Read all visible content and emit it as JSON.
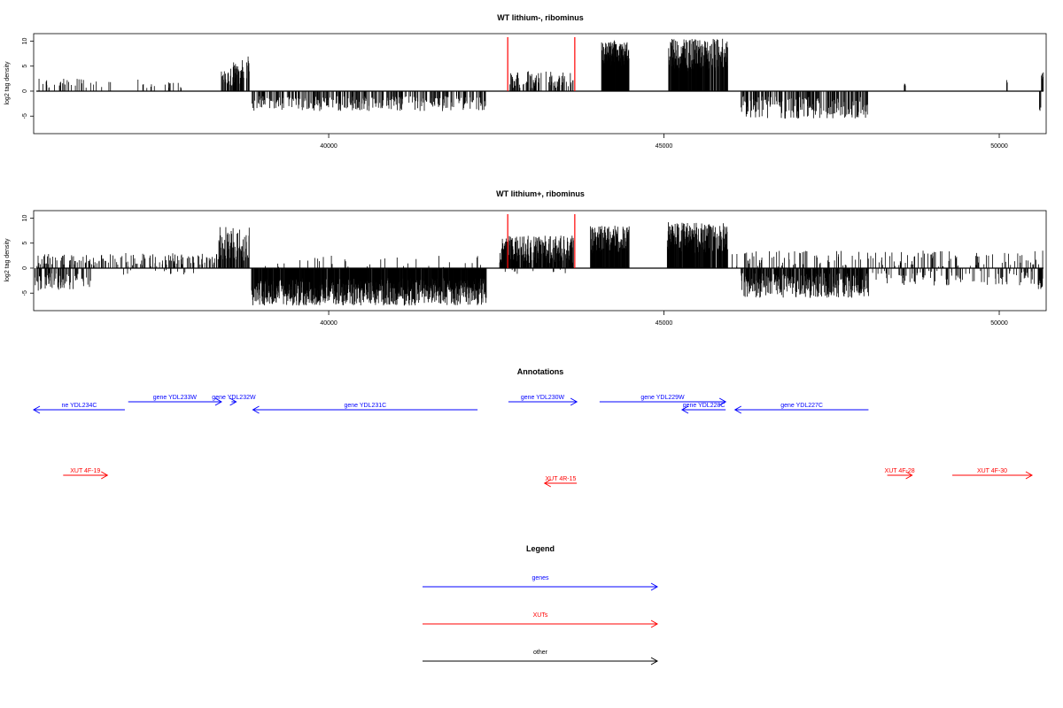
{
  "figure": {
    "panels": [
      {
        "title": "WT lithium-, ribominus"
      },
      {
        "title": "WT lithium+, ribominus"
      }
    ],
    "annotations_title": "Annotations",
    "legend_title": "Legend"
  },
  "chart_data": [
    {
      "type": "bar",
      "title": "WT lithium-, ribominus",
      "xlabel": "",
      "ylabel": "log2 tag density",
      "xlim": [
        35600,
        50700
      ],
      "ylim": [
        -8.5,
        11.5
      ],
      "xticks": [
        40000,
        45000,
        50000
      ],
      "yticks": [
        -5,
        0,
        5,
        10
      ],
      "grid": false,
      "colors": {
        "bars": "#000000",
        "markers": "#ff0000"
      },
      "marker_positions": [
        42670,
        43670
      ],
      "segments": [
        {
          "x": [
            35620,
            36400
          ],
          "min": -2.5,
          "max": -1.0,
          "sign": -1,
          "density": 0.08,
          "seed": 1
        },
        {
          "x": [
            35650,
            36800
          ],
          "min": 0.5,
          "max": 2.5,
          "sign": 1,
          "density": 0.07,
          "seed": 2
        },
        {
          "x": [
            37100,
            37800
          ],
          "min": 0.5,
          "max": 2.5,
          "sign": 1,
          "density": 0.07,
          "seed": 3
        },
        {
          "x": [
            38400,
            38700
          ],
          "min": 1.0,
          "max": 5.0,
          "sign": 1,
          "density": 0.5,
          "seed": 4
        },
        {
          "x": [
            38550,
            38820
          ],
          "min": 2.0,
          "max": 7.0,
          "sign": 1,
          "density": 0.35,
          "seed": 5
        },
        {
          "x": [
            38850,
            42350
          ],
          "min": 1.0,
          "max": 4.0,
          "sign": -1,
          "density": 0.3,
          "seed": 6
        },
        {
          "x": [
            42700,
            43650
          ],
          "min": 0.5,
          "max": 4.0,
          "sign": 1,
          "density": 0.3,
          "seed": 7
        },
        {
          "x": [
            44070,
            44480
          ],
          "min": 5.0,
          "max": 10.2,
          "sign": 1,
          "density": 0.95,
          "seed": 8
        },
        {
          "x": [
            45070,
            45950
          ],
          "min": 4.0,
          "max": 10.5,
          "sign": 1,
          "density": 0.8,
          "seed": 9
        },
        {
          "x": [
            46150,
            48050
          ],
          "min": 1.0,
          "max": 5.5,
          "sign": -1,
          "density": 0.4,
          "seed": 10
        },
        {
          "x": [
            47700,
            48100
          ],
          "min": 0.3,
          "max": 1.5,
          "sign": 1,
          "density": 0.03,
          "seed": 11
        },
        {
          "x": [
            48580,
            48600
          ],
          "min": 1.0,
          "max": 1.6,
          "sign": 1,
          "density": 0.5,
          "seed": 12
        },
        {
          "x": [
            50100,
            50130
          ],
          "min": 1.5,
          "max": 2.3,
          "sign": 1,
          "density": 0.5,
          "seed": 13
        },
        {
          "x": [
            50600,
            50620
          ],
          "min": 3.0,
          "max": 4.0,
          "sign": -1,
          "density": 0.5,
          "seed": 14
        },
        {
          "x": [
            50630,
            50660
          ],
          "min": 2.5,
          "max": 3.8,
          "sign": 1,
          "density": 0.5,
          "seed": 15
        }
      ]
    },
    {
      "type": "bar",
      "title": "WT lithium+, ribominus",
      "xlabel": "",
      "ylabel": "log2 tag density",
      "xlim": [
        35600,
        50700
      ],
      "ylim": [
        -8.5,
        11.5
      ],
      "xticks": [
        40000,
        45000,
        50000
      ],
      "yticks": [
        -5,
        0,
        5,
        10
      ],
      "grid": false,
      "colors": {
        "bars": "#000000",
        "markers": "#ff0000"
      },
      "marker_positions": [
        42670,
        43670
      ],
      "segments": [
        {
          "x": [
            35620,
            36450
          ],
          "min": 1.0,
          "max": 4.5,
          "sign": -1,
          "density": 0.35,
          "seed": 21
        },
        {
          "x": [
            35650,
            38400
          ],
          "min": 0.3,
          "max": 3.0,
          "sign": 1,
          "density": 0.2,
          "seed": 22
        },
        {
          "x": [
            36900,
            38000
          ],
          "min": 0.3,
          "max": 1.5,
          "sign": -1,
          "density": 0.05,
          "seed": 23
        },
        {
          "x": [
            38350,
            38820
          ],
          "min": 1.5,
          "max": 8.5,
          "sign": 1,
          "density": 0.55,
          "seed": 24
        },
        {
          "x": [
            38850,
            42350
          ],
          "min": 2.0,
          "max": 7.5,
          "sign": -1,
          "density": 0.9,
          "seed": 25
        },
        {
          "x": [
            39000,
            42300
          ],
          "min": 0.2,
          "max": 2.5,
          "sign": 1,
          "density": 0.03,
          "seed": 26
        },
        {
          "x": [
            42550,
            43650
          ],
          "min": 1.0,
          "max": 6.5,
          "sign": 1,
          "density": 0.75,
          "seed": 27
        },
        {
          "x": [
            42600,
            43600
          ],
          "min": 0.2,
          "max": 1.2,
          "sign": -1,
          "density": 0.04,
          "seed": 28
        },
        {
          "x": [
            43900,
            44480
          ],
          "min": 3.0,
          "max": 8.5,
          "sign": 1,
          "density": 0.9,
          "seed": 29
        },
        {
          "x": [
            45050,
            45950
          ],
          "min": 3.0,
          "max": 9.2,
          "sign": 1,
          "density": 0.8,
          "seed": 30
        },
        {
          "x": [
            46000,
            50650
          ],
          "min": 0.3,
          "max": 3.5,
          "sign": 1,
          "density": 0.12,
          "seed": 31
        },
        {
          "x": [
            46150,
            48050
          ],
          "min": 1.0,
          "max": 6.0,
          "sign": -1,
          "density": 0.65,
          "seed": 32
        },
        {
          "x": [
            48100,
            50600
          ],
          "min": 0.5,
          "max": 3.5,
          "sign": -1,
          "density": 0.15,
          "seed": 33
        },
        {
          "x": [
            50580,
            50650
          ],
          "min": 2.0,
          "max": 4.2,
          "sign": -1,
          "density": 0.7,
          "seed": 34
        }
      ]
    }
  ],
  "annotations": {
    "genes_color": "#0000ff",
    "xuts_color": "#ff0000",
    "genes": [
      {
        "label": "ne YDL234C",
        "start": 35600,
        "end": 36960,
        "strand": "-",
        "row": 2
      },
      {
        "label": "gene YDL233W",
        "start": 37010,
        "end": 38400,
        "strand": "+",
        "row": 1
      },
      {
        "label": "gene YDL232W",
        "start": 38550,
        "end": 38620,
        "strand": "+",
        "row": 1
      },
      {
        "label": "gene YDL231C",
        "start": 38870,
        "end": 42220,
        "strand": "-",
        "row": 2
      },
      {
        "label": "gene YDL230W",
        "start": 42680,
        "end": 43700,
        "strand": "+",
        "row": 1
      },
      {
        "label": "gene YDL229W",
        "start": 44040,
        "end": 45920,
        "strand": "+",
        "row": 1
      },
      {
        "label": "gene YDL228C",
        "start": 45270,
        "end": 45920,
        "strand": "-",
        "row": 2
      },
      {
        "label": "gene YDL227C",
        "start": 46060,
        "end": 48050,
        "strand": "-",
        "row": 2
      }
    ],
    "xuts": [
      {
        "label": "XUT 4F-19",
        "start": 36040,
        "end": 36700,
        "strand": "+",
        "row": 1
      },
      {
        "label": "XUT 4R-15",
        "start": 43220,
        "end": 43700,
        "strand": "-",
        "row": 2
      },
      {
        "label": "XUT 4F-28",
        "start": 48330,
        "end": 48700,
        "strand": "+",
        "row": 1
      },
      {
        "label": "XUT 4F-30",
        "start": 49300,
        "end": 50510,
        "strand": "+",
        "row": 1
      }
    ]
  },
  "legend": {
    "items": [
      {
        "label": "genes",
        "color": "#0000ff"
      },
      {
        "label": "XUTs",
        "color": "#ff0000"
      },
      {
        "label": "other",
        "color": "#000000"
      }
    ]
  }
}
